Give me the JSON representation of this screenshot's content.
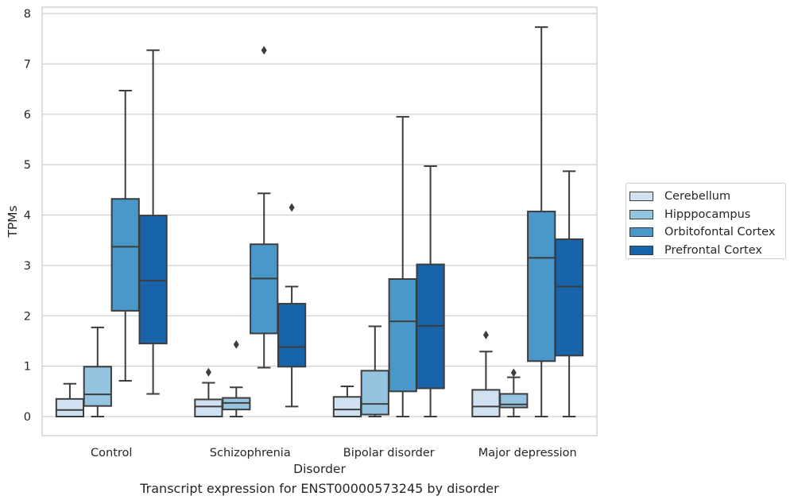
{
  "chart_data": {
    "type": "box",
    "title": "Transcript expression for ENST00000573245 by disorder",
    "xlabel": "Disorder",
    "ylabel": "TPMs",
    "ylim": [
      -0.38,
      8.12
    ],
    "yticks": [
      0,
      1,
      2,
      3,
      4,
      5,
      6,
      7,
      8
    ],
    "grid": "horizontal",
    "legend_placement": "right, outside plot",
    "categories": [
      "Control",
      "Schizophrenia",
      "Bipolar disorder",
      "Major depression"
    ],
    "series": [
      {
        "name": "Cerebellum",
        "color": "#d0e1f2",
        "boxes": [
          {
            "whislo": 0.0,
            "q1": 0.0,
            "med": 0.13,
            "q3": 0.35,
            "whishi": 0.65,
            "fliers": []
          },
          {
            "whislo": 0.0,
            "q1": 0.0,
            "med": 0.2,
            "q3": 0.34,
            "whishi": 0.67,
            "fliers": [
              0.88
            ]
          },
          {
            "whislo": 0.0,
            "q1": 0.0,
            "med": 0.14,
            "q3": 0.39,
            "whishi": 0.6,
            "fliers": []
          },
          {
            "whislo": 0.0,
            "q1": 0.0,
            "med": 0.2,
            "q3": 0.53,
            "whishi": 1.29,
            "fliers": [
              1.62
            ]
          }
        ]
      },
      {
        "name": "Hipppocampus",
        "color": "#94c4df",
        "boxes": [
          {
            "whislo": 0.0,
            "q1": 0.21,
            "med": 0.44,
            "q3": 0.99,
            "whishi": 1.77,
            "fliers": []
          },
          {
            "whislo": 0.0,
            "q1": 0.14,
            "med": 0.27,
            "q3": 0.37,
            "whishi": 0.58,
            "fliers": [
              1.43
            ]
          },
          {
            "whislo": 0.0,
            "q1": 0.04,
            "med": 0.25,
            "q3": 0.91,
            "whishi": 1.79,
            "fliers": []
          },
          {
            "whislo": 0.0,
            "q1": 0.18,
            "med": 0.24,
            "q3": 0.45,
            "whishi": 0.78,
            "fliers": [
              0.87
            ]
          }
        ]
      },
      {
        "name": "Orbitofontal Cortex",
        "color": "#4a98c9",
        "boxes": [
          {
            "whislo": 0.71,
            "q1": 2.1,
            "med": 3.37,
            "q3": 4.32,
            "whishi": 6.47,
            "fliers": []
          },
          {
            "whislo": 0.97,
            "q1": 1.65,
            "med": 2.74,
            "q3": 3.42,
            "whishi": 4.43,
            "fliers": [
              7.27
            ]
          },
          {
            "whislo": 0.0,
            "q1": 0.5,
            "med": 1.89,
            "q3": 2.73,
            "whishi": 5.95,
            "fliers": []
          },
          {
            "whislo": 0.0,
            "q1": 1.1,
            "med": 3.15,
            "q3": 4.07,
            "whishi": 7.73,
            "fliers": []
          }
        ]
      },
      {
        "name": "Prefrontal Cortex",
        "color": "#1764ab",
        "boxes": [
          {
            "whislo": 0.45,
            "q1": 1.45,
            "med": 2.7,
            "q3": 3.99,
            "whishi": 7.27,
            "fliers": []
          },
          {
            "whislo": 0.2,
            "q1": 0.99,
            "med": 1.38,
            "q3": 2.24,
            "whishi": 2.58,
            "fliers": [
              4.15
            ]
          },
          {
            "whislo": 0.0,
            "q1": 0.56,
            "med": 1.8,
            "q3": 3.02,
            "whishi": 4.97,
            "fliers": []
          },
          {
            "whislo": 0.0,
            "q1": 1.21,
            "med": 2.58,
            "q3": 3.52,
            "whishi": 4.87,
            "fliers": []
          }
        ]
      }
    ]
  }
}
